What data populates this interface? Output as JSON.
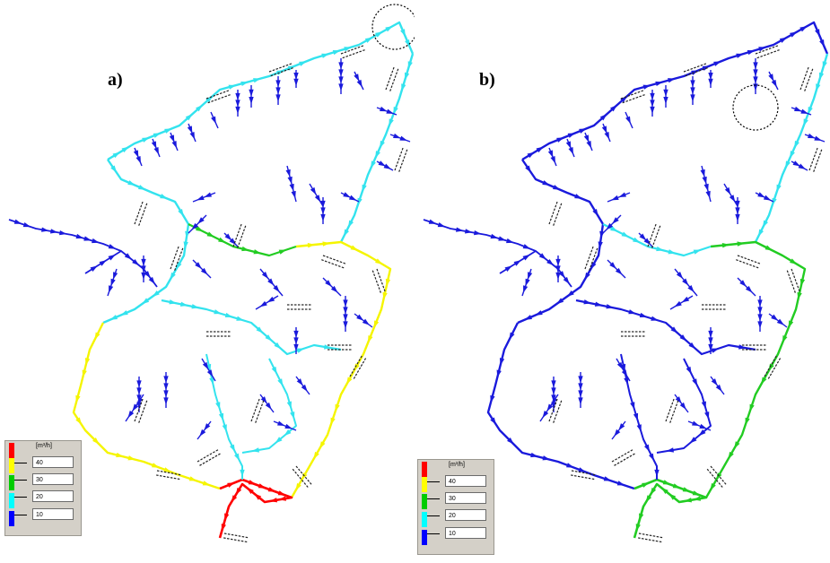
{
  "panels": [
    {
      "id": "a",
      "label": "a)"
    },
    {
      "id": "b",
      "label": "b)"
    }
  ],
  "legend": {
    "unit": "[m³/h]",
    "colors": [
      "#ff0000",
      "#ffff00",
      "#00cc00",
      "#00ffff",
      "#0000ff"
    ],
    "values": [
      "40",
      "30",
      "20",
      "10"
    ]
  },
  "colors": {
    "red": "#ff0000",
    "yellow": "#f5f500",
    "green": "#22cc22",
    "cyan": "#33e3ee",
    "blue": "#1a1adc",
    "highlight_circle": "#000000"
  }
}
